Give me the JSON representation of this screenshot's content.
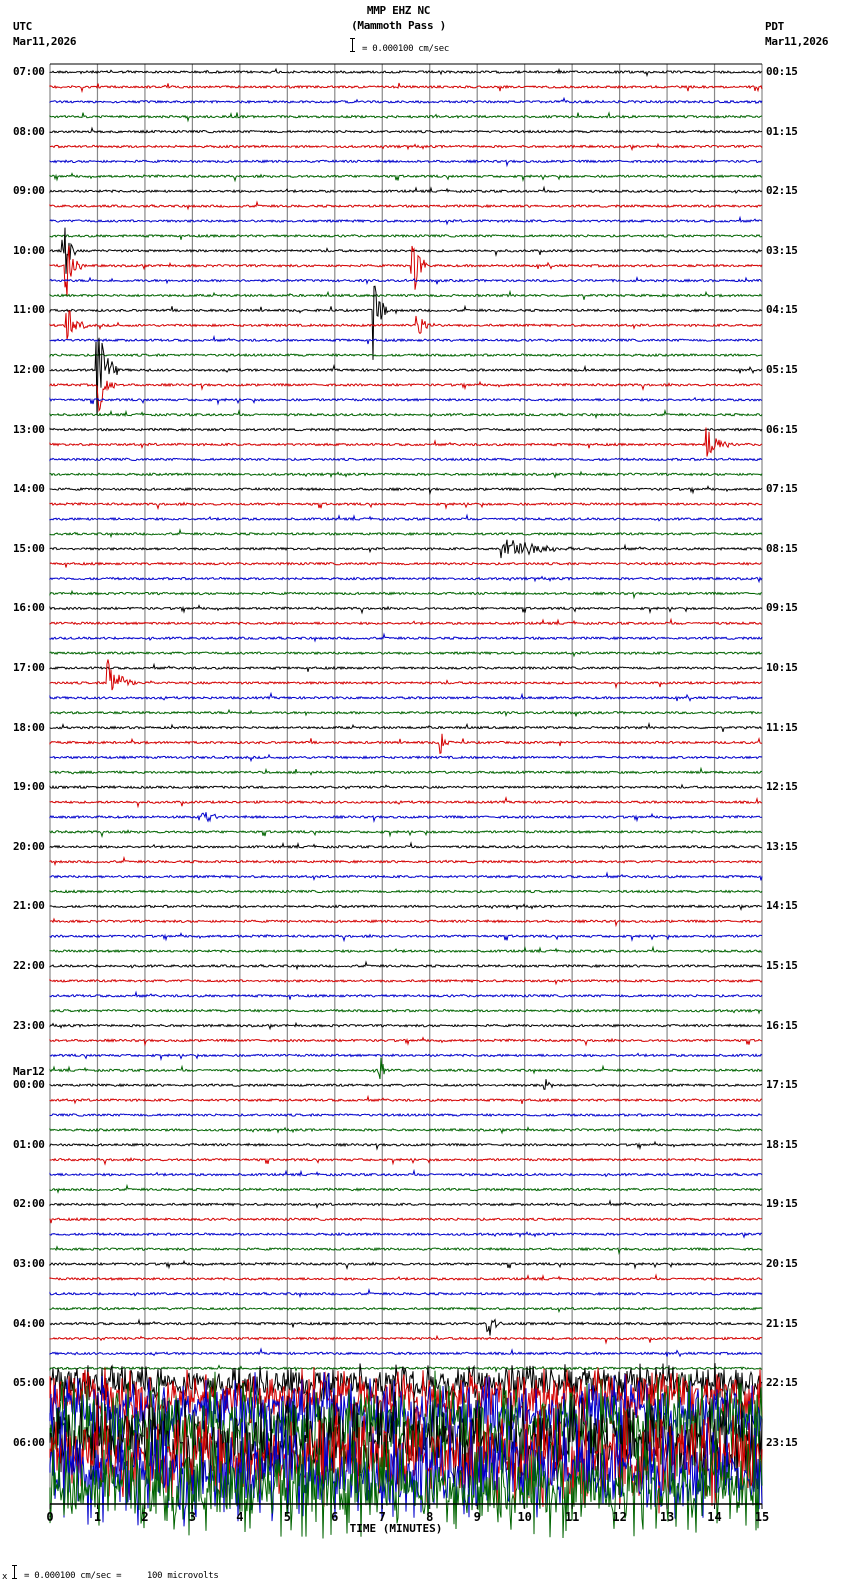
{
  "header": {
    "station": "MMP EHZ NC",
    "location": "(Mammoth Pass )",
    "left_tz": "UTC",
    "left_date": "Mar11,2026",
    "right_tz": "PDT",
    "right_date": "Mar11,2026",
    "scale_text": "= 0.000100 cm/sec"
  },
  "footer": {
    "scale_text": "= 0.000100 cm/sec =     100 microvolts",
    "marker": "x"
  },
  "chart_data": {
    "type": "line",
    "title": "MMP EHZ NC (Mammoth Pass )",
    "xlabel": "TIME (MINUTES)",
    "ylabel": "",
    "xlim": [
      0,
      15
    ],
    "x_ticks": [
      "0",
      "1",
      "2",
      "3",
      "4",
      "5",
      "6",
      "7",
      "8",
      "9",
      "10",
      "11",
      "12",
      "13",
      "14",
      "15"
    ],
    "grid": true,
    "trace_colors": [
      "#000000",
      "#d40000",
      "#0000cc",
      "#006400"
    ],
    "lines_per_hour": 4,
    "minutes_per_line": 15,
    "left_labels": [
      {
        "row": 0,
        "text": "07:00"
      },
      {
        "row": 4,
        "text": "08:00"
      },
      {
        "row": 8,
        "text": "09:00"
      },
      {
        "row": 12,
        "text": "10:00"
      },
      {
        "row": 16,
        "text": "11:00"
      },
      {
        "row": 20,
        "text": "12:00"
      },
      {
        "row": 24,
        "text": "13:00"
      },
      {
        "row": 28,
        "text": "14:00"
      },
      {
        "row": 32,
        "text": "15:00"
      },
      {
        "row": 36,
        "text": "16:00"
      },
      {
        "row": 40,
        "text": "17:00"
      },
      {
        "row": 44,
        "text": "18:00"
      },
      {
        "row": 48,
        "text": "19:00"
      },
      {
        "row": 52,
        "text": "20:00"
      },
      {
        "row": 56,
        "text": "21:00"
      },
      {
        "row": 60,
        "text": "22:00"
      },
      {
        "row": 64,
        "text": "23:00"
      },
      {
        "row": 68,
        "text": "00:00",
        "date": "Mar12"
      },
      {
        "row": 72,
        "text": "01:00"
      },
      {
        "row": 76,
        "text": "02:00"
      },
      {
        "row": 80,
        "text": "03:00"
      },
      {
        "row": 84,
        "text": "04:00"
      },
      {
        "row": 88,
        "text": "05:00"
      },
      {
        "row": 92,
        "text": "06:00"
      }
    ],
    "right_labels": [
      {
        "row": 0,
        "text": "00:15"
      },
      {
        "row": 4,
        "text": "01:15"
      },
      {
        "row": 8,
        "text": "02:15"
      },
      {
        "row": 12,
        "text": "03:15"
      },
      {
        "row": 16,
        "text": "04:15"
      },
      {
        "row": 20,
        "text": "05:15"
      },
      {
        "row": 24,
        "text": "06:15"
      },
      {
        "row": 28,
        "text": "07:15"
      },
      {
        "row": 32,
        "text": "08:15"
      },
      {
        "row": 36,
        "text": "09:15"
      },
      {
        "row": 40,
        "text": "10:15"
      },
      {
        "row": 44,
        "text": "11:15"
      },
      {
        "row": 48,
        "text": "12:15"
      },
      {
        "row": 52,
        "text": "13:15"
      },
      {
        "row": 56,
        "text": "14:15"
      },
      {
        "row": 60,
        "text": "15:15"
      },
      {
        "row": 64,
        "text": "16:15"
      },
      {
        "row": 68,
        "text": "17:15"
      },
      {
        "row": 72,
        "text": "18:15"
      },
      {
        "row": 76,
        "text": "19:15"
      },
      {
        "row": 80,
        "text": "20:15"
      },
      {
        "row": 84,
        "text": "21:15"
      },
      {
        "row": 88,
        "text": "22:15"
      },
      {
        "row": 92,
        "text": "23:15"
      }
    ],
    "events": [
      {
        "row": 12,
        "minute": 0.25,
        "amp": 60,
        "dur": 0.3
      },
      {
        "row": 13,
        "minute": 0.3,
        "amp": 50,
        "dur": 0.4
      },
      {
        "row": 17,
        "minute": 0.3,
        "amp": 30,
        "dur": 0.5
      },
      {
        "row": 20,
        "minute": 0.95,
        "amp": 70,
        "dur": 0.5
      },
      {
        "row": 21,
        "minute": 1.0,
        "amp": 40,
        "dur": 0.4
      },
      {
        "row": 16,
        "minute": 6.8,
        "amp": 60,
        "dur": 0.3
      },
      {
        "row": 13,
        "minute": 7.6,
        "amp": 50,
        "dur": 0.4
      },
      {
        "row": 17,
        "minute": 7.7,
        "amp": 30,
        "dur": 0.4
      },
      {
        "row": 25,
        "minute": 13.8,
        "amp": 25,
        "dur": 0.6
      },
      {
        "row": 32,
        "minute": 9.5,
        "amp": 18,
        "dur": 1.6
      },
      {
        "row": 41,
        "minute": 1.2,
        "amp": 30,
        "dur": 0.6
      },
      {
        "row": 45,
        "minute": 8.2,
        "amp": 20,
        "dur": 0.3
      },
      {
        "row": 50,
        "minute": 3.2,
        "amp": 15,
        "dur": 0.4
      },
      {
        "row": 84,
        "minute": 9.2,
        "amp": 25,
        "dur": 0.4
      },
      {
        "row": 68,
        "minute": 10.4,
        "amp": 20,
        "dur": 0.2
      },
      {
        "row": 67,
        "minute": 6.9,
        "amp": 40,
        "dur": 0.2
      }
    ],
    "noisy_from_row": 88
  }
}
